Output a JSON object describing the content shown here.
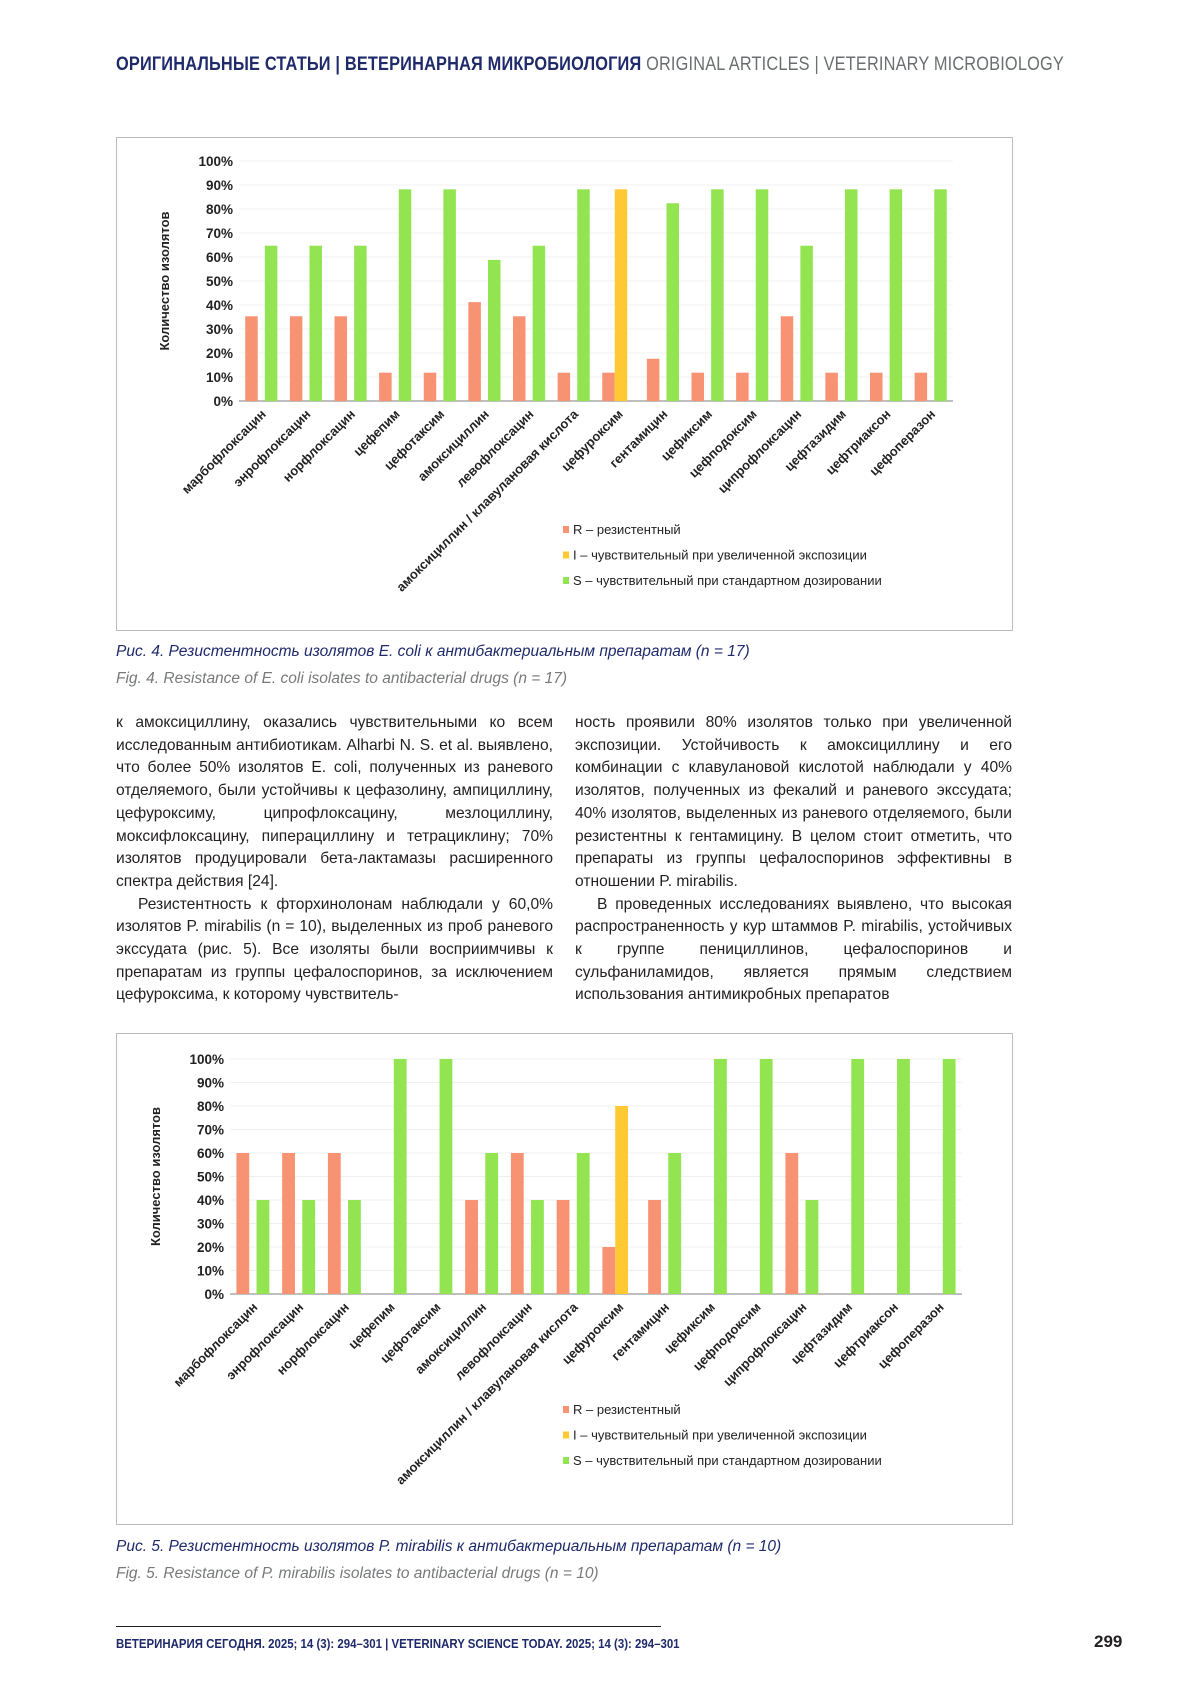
{
  "header": {
    "ru": "ОРИГИНАЛЬНЫЕ СТАТЬИ | ВЕТЕРИНАРНАЯ МИКРОБИОЛОГИЯ",
    "en": "ORIGINAL ARTICLES | VETERINARY MICROBIOLOGY"
  },
  "colors": {
    "R": "#f79273",
    "I": "#ffc933",
    "S": "#92e550"
  },
  "chart_data": [
    {
      "type": "bar",
      "title": "",
      "ylabel": "Количество изолятов",
      "xlabel": "",
      "ylim": [
        0,
        100
      ],
      "yticks": [
        "0%",
        "10%",
        "20%",
        "30%",
        "40%",
        "50%",
        "60%",
        "70%",
        "80%",
        "90%",
        "100%"
      ],
      "grid": true,
      "legend_position": "bottom",
      "categories": [
        "марбофлоксацин",
        "энрофлоксацин",
        "норфлоксацин",
        "цефепим",
        "цефотаксим",
        "амоксициллин",
        "левофлоксацин",
        "амоксициллин / клавулановая кислота",
        "цефуроксим",
        "гентамицин",
        "цефиксим",
        "цефподоксим",
        "ципрофлоксацин",
        "цефтазидим",
        "цефтриаксон",
        "цефоперазон"
      ],
      "series": [
        {
          "name": "R – резистентный",
          "key": "R",
          "values": [
            35.3,
            35.3,
            35.3,
            11.8,
            11.8,
            41.2,
            35.3,
            11.8,
            11.8,
            17.6,
            11.8,
            11.8,
            35.3,
            11.8,
            11.8,
            11.8
          ]
        },
        {
          "name": "I – чувствительный при увеличенной экспозиции",
          "key": "I",
          "values": [
            0,
            0,
            0,
            0,
            0,
            0,
            0,
            0,
            88.2,
            0,
            0,
            0,
            0,
            0,
            0,
            0
          ]
        },
        {
          "name": "S – чувствительный при стандартном дозировании",
          "key": "S",
          "values": [
            64.7,
            64.7,
            64.7,
            88.2,
            88.2,
            58.8,
            64.7,
            88.2,
            0,
            82.4,
            88.2,
            88.2,
            64.7,
            88.2,
            88.2,
            88.2
          ]
        }
      ]
    },
    {
      "type": "bar",
      "title": "",
      "ylabel": "Количество изолятов",
      "xlabel": "",
      "ylim": [
        0,
        100
      ],
      "yticks": [
        "0%",
        "10%",
        "20%",
        "30%",
        "40%",
        "50%",
        "60%",
        "70%",
        "80%",
        "90%",
        "100%"
      ],
      "grid": true,
      "legend_position": "bottom",
      "categories": [
        "марбофлоксацин",
        "энрофлоксацин",
        "норфлоксацин",
        "цефепим",
        "цефотаксим",
        "амоксициллин",
        "левофлоксацин",
        "амоксициллин / клавулановая кислота",
        "цефуроксим",
        "гентамицин",
        "цефиксим",
        "цефподоксим",
        "ципрофлоксацин",
        "цефтазидим",
        "цефтриаксон",
        "цефоперазон"
      ],
      "series": [
        {
          "name": "R – резистентный",
          "key": "R",
          "values": [
            60,
            60,
            60,
            0,
            0,
            40,
            60,
            40,
            20,
            40,
            0,
            0,
            60,
            0,
            0,
            0
          ]
        },
        {
          "name": "I – чувствительный при увеличенной экспозиции",
          "key": "I",
          "values": [
            0,
            0,
            0,
            0,
            0,
            0,
            0,
            0,
            80,
            0,
            0,
            0,
            0,
            0,
            0,
            0
          ]
        },
        {
          "name": "S – чувствительный при стандартном дозировании",
          "key": "S",
          "values": [
            40,
            40,
            40,
            100,
            100,
            60,
            40,
            60,
            0,
            60,
            100,
            100,
            40,
            100,
            100,
            100
          ]
        }
      ]
    }
  ],
  "fig4": {
    "ru": "Рис. 4. Резистентность изолятов E. coli к антибактериальным препаратам (n = 17)",
    "en": "Fig. 4. Resistance of E. coli isolates to antibacterial drugs (n = 17)"
  },
  "fig5": {
    "ru": "Рис. 5. Резистентность изолятов P. mirabilis к антибактериальным препаратам (n = 10)",
    "en": "Fig. 5. Resistance of P. mirabilis isolates to antibacterial drugs (n = 10)"
  },
  "body": {
    "left_p1": "к амоксициллину, оказались чувствительными ко всем исследованным антибиотикам. Alharbi N. S. et al. выявлено, что более 50% изолятов E. coli, полученных из раневого отделяемого, были устойчивы к цефазолину, ампициллину, цефуроксиму, ципрофлоксацину, мезлоциллину, моксифлоксацину, пиперациллину и тетрациклину; 70% изолятов продуцировали бета-лактамазы расширенного спектра действия [24].",
    "left_p2": "Резистентность к фторхинолонам наблюдали у 60,0% изолятов P. mirabilis (n = 10), выделенных из проб раневого экссудата (рис. 5). Все изоляты были восприимчивы к препаратам из группы цефалоспоринов, за исключением цефуроксима, к которому чувствитель-",
    "right_p1": "ность проявили 80% изолятов только при увеличенной экспозиции. Устойчивость к амоксициллину и его комбинации с клавулановой кислотой наблюдали у 40% изолятов, полученных из фекалий и раневого экссудата; 40% изолятов, выделенных из раневого отделяемого, были резистентны к гентамицину. В целом стоит отметить, что препараты из группы цефалоспоринов эффективны в отношении P. mirabilis.",
    "right_p2": "В проведенных исследованиях выявлено, что высокая распространенность у кур штаммов P. mirabilis, устойчивых к группе пенициллинов, цефалоспоринов и сульфаниламидов, является прямым следствием использования антимикробных препаратов"
  },
  "footer": {
    "text": "ВЕТЕРИНАРИЯ СЕГОДНЯ. 2025; 14 (3): 294–301 | VETERINARY SCIENCE TODAY. 2025; 14 (3): 294–301",
    "page": "299"
  }
}
